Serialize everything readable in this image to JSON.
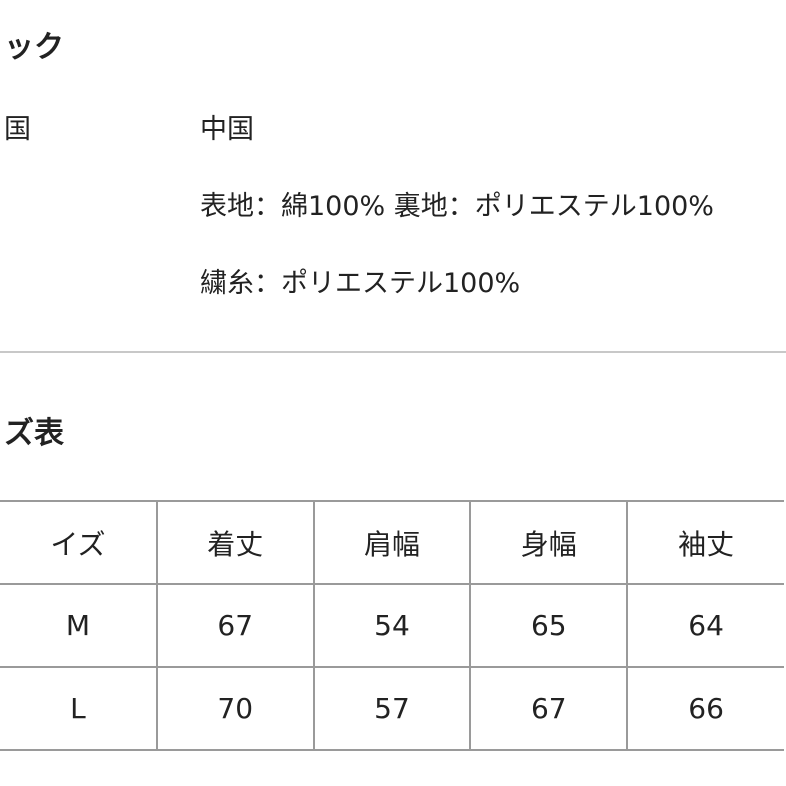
{
  "section1": {
    "title": "ック"
  },
  "spec": {
    "rows": [
      {
        "label": "国",
        "value": "中国"
      },
      {
        "label": "",
        "value": "表地：綿100% 裏地：ポリエステル100%"
      },
      {
        "label": "",
        "value": "繍糸：ポリエステル100%"
      }
    ]
  },
  "section2": {
    "title": "ズ表"
  },
  "size_table": {
    "headers": [
      "イズ",
      "着丈",
      "肩幅",
      "身幅",
      "袖丈"
    ],
    "rows": [
      [
        "M",
        "67",
        "54",
        "65",
        "64"
      ],
      [
        "L",
        "70",
        "57",
        "67",
        "66"
      ]
    ]
  }
}
